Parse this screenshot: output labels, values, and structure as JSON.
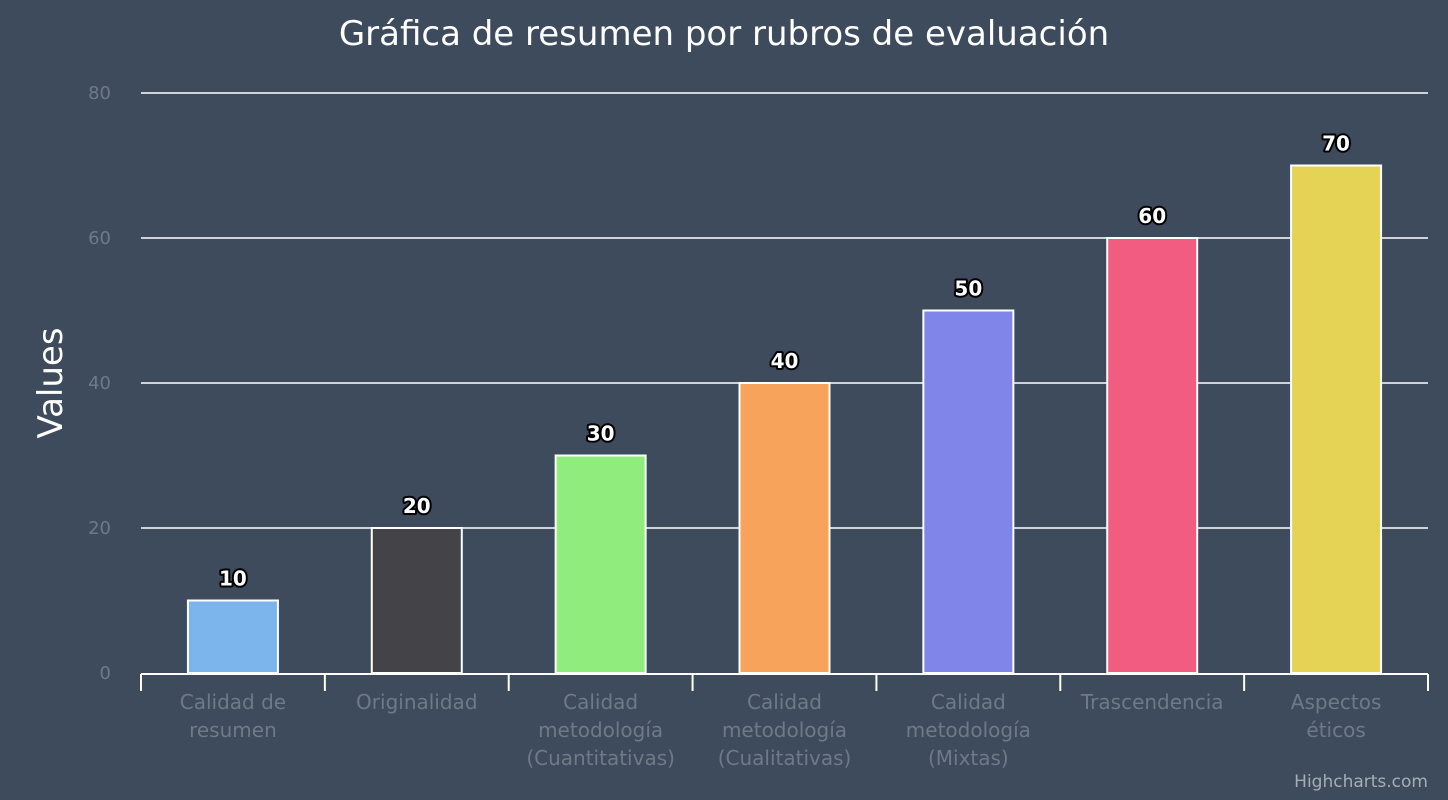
{
  "chart_data": {
    "type": "bar",
    "title": "Gráfica de resumen por rubros de evaluación",
    "ylabel": "Values",
    "xlabel": "",
    "ylim": [
      0,
      80
    ],
    "yticks": [
      0,
      20,
      40,
      60,
      80
    ],
    "grid": true,
    "categories": [
      [
        "Calidad de",
        "resumen"
      ],
      [
        "Originalidad"
      ],
      [
        "Calidad",
        "metodología",
        "(Cuantitativas)"
      ],
      [
        "Calidad",
        "metodología",
        "(Cualitativas)"
      ],
      [
        "Calidad",
        "metodología",
        "(Mixtas)"
      ],
      [
        "Trascendencia"
      ],
      [
        "Aspectos",
        "éticos"
      ]
    ],
    "values": [
      10,
      20,
      30,
      40,
      50,
      60,
      70
    ],
    "data_labels": [
      "10",
      "20",
      "30",
      "40",
      "50",
      "60",
      "70"
    ],
    "colors": [
      "#7cb5ec",
      "#434348",
      "#90ed7d",
      "#f7a35c",
      "#8085e9",
      "#f15c80",
      "#e4d354"
    ]
  },
  "credits": "Highcharts.com"
}
